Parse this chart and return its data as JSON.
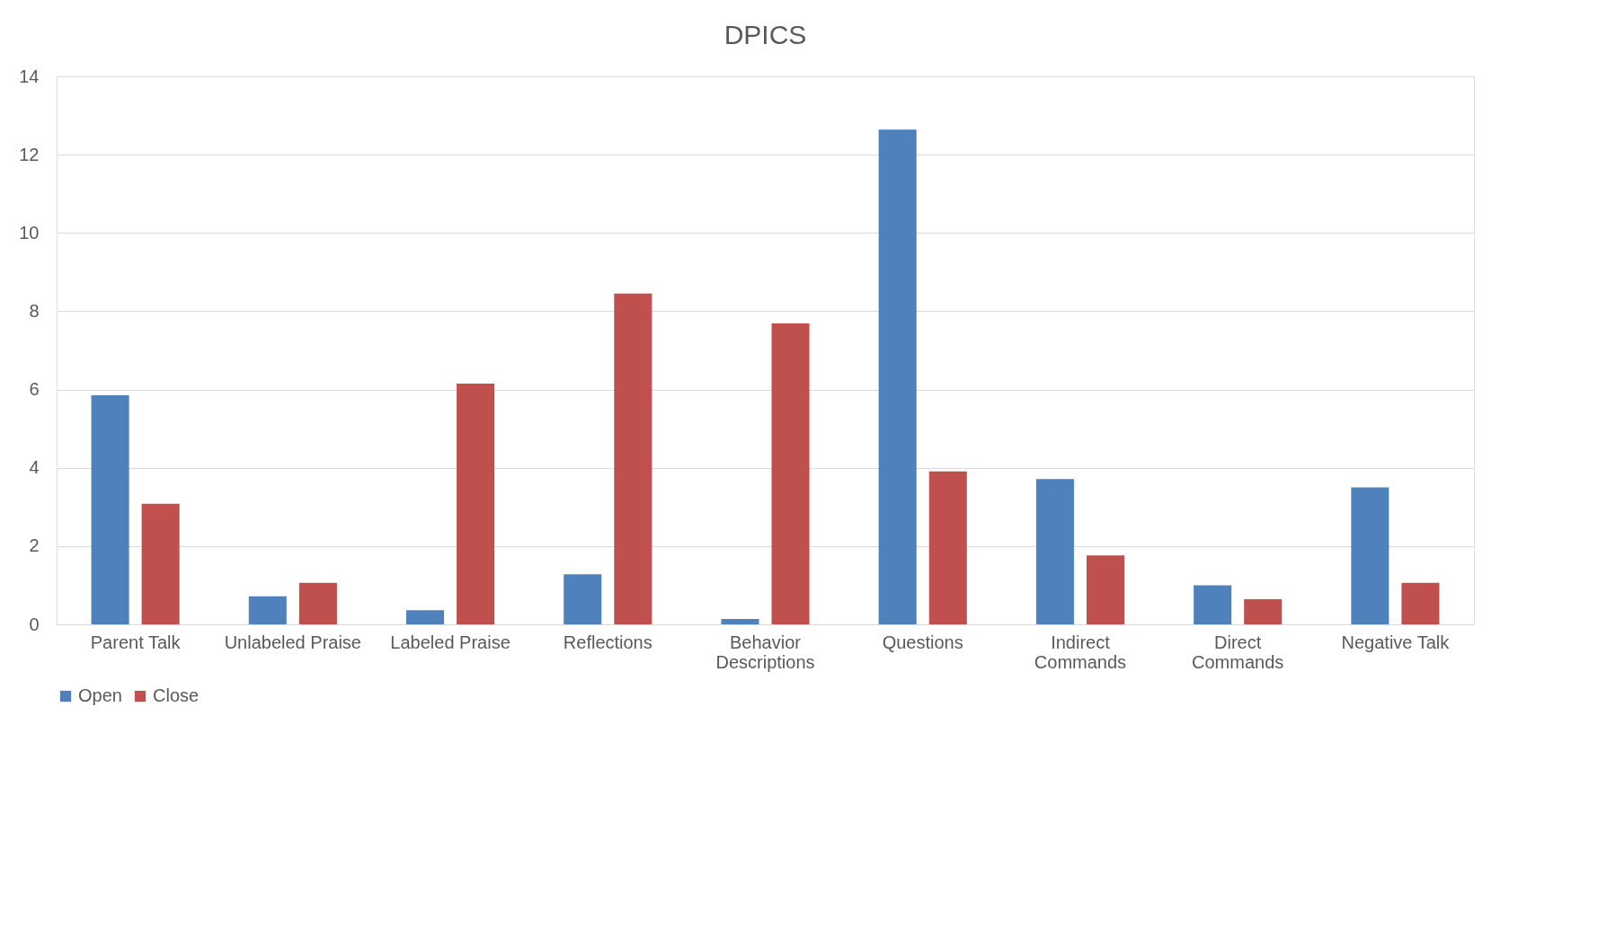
{
  "chart_data": {
    "type": "bar",
    "title": "DPICS",
    "categories": [
      "Parent Talk",
      "Unlabeled Praise",
      "Labeled Praise",
      "Reflections",
      "Behavior Descriptions",
      "Questions",
      "Indirect Commands",
      "Direct Commands",
      "Negative Talk"
    ],
    "series": [
      {
        "name": "Open",
        "color": "#4f81bd",
        "values": [
          5.85,
          0.72,
          0.36,
          1.28,
          0.14,
          12.64,
          3.71,
          1.0,
          3.5
        ]
      },
      {
        "name": "Close",
        "color": "#c0504d",
        "values": [
          3.08,
          1.06,
          6.15,
          8.45,
          7.69,
          3.91,
          1.76,
          0.64,
          1.06
        ]
      }
    ],
    "ylim": [
      0,
      14
    ],
    "yticks": [
      0,
      2,
      4,
      6,
      8,
      10,
      12,
      14
    ],
    "grid": "y",
    "legend": "bottom"
  }
}
